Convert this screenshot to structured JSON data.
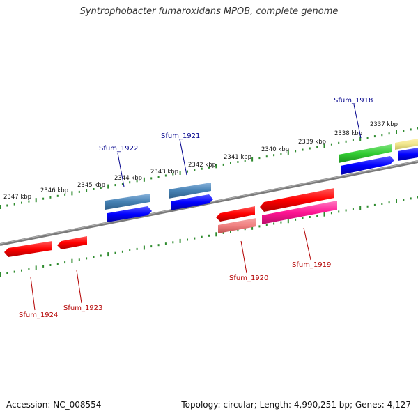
{
  "title": "Syntrophobacter fumaroxidans MPOB, complete genome",
  "footer": {
    "accession": "Accession: NC_008554",
    "summary": "Topology: circular; Length: 4,990,251 bp; Genes: 4,127"
  },
  "scale": {
    "ticks": [
      {
        "label": "2337 kbp",
        "kbp": 2337
      },
      {
        "label": "2338 kbp",
        "kbp": 2338
      },
      {
        "label": "2339 kbp",
        "kbp": 2339
      },
      {
        "label": "2340 kbp",
        "kbp": 2340
      },
      {
        "label": "2341 kbp",
        "kbp": 2341
      },
      {
        "label": "2342 kbp",
        "kbp": 2342
      },
      {
        "label": "2343 kbp",
        "kbp": 2343
      },
      {
        "label": "2344 kbp",
        "kbp": 2344
      },
      {
        "label": "2345 kbp",
        "kbp": 2345
      },
      {
        "label": "2346 kbp",
        "kbp": 2346
      },
      {
        "label": "2347 kbp",
        "kbp": 2347
      }
    ]
  },
  "colors": {
    "backbone": "#808080",
    "tick": "#2e8b2e",
    "forward_label": "#00008b",
    "reverse_label": "#b30000"
  },
  "genes": {
    "labels": [
      {
        "name": "Sfum_1918",
        "strand": "forward"
      },
      {
        "name": "Sfum_1921",
        "strand": "forward"
      },
      {
        "name": "Sfum_1922",
        "strand": "forward"
      },
      {
        "name": "Sfum_1919",
        "strand": "reverse"
      },
      {
        "name": "Sfum_1920",
        "strand": "reverse"
      },
      {
        "name": "Sfum_1923",
        "strand": "reverse"
      },
      {
        "name": "Sfum_1924",
        "strand": "reverse"
      }
    ]
  }
}
